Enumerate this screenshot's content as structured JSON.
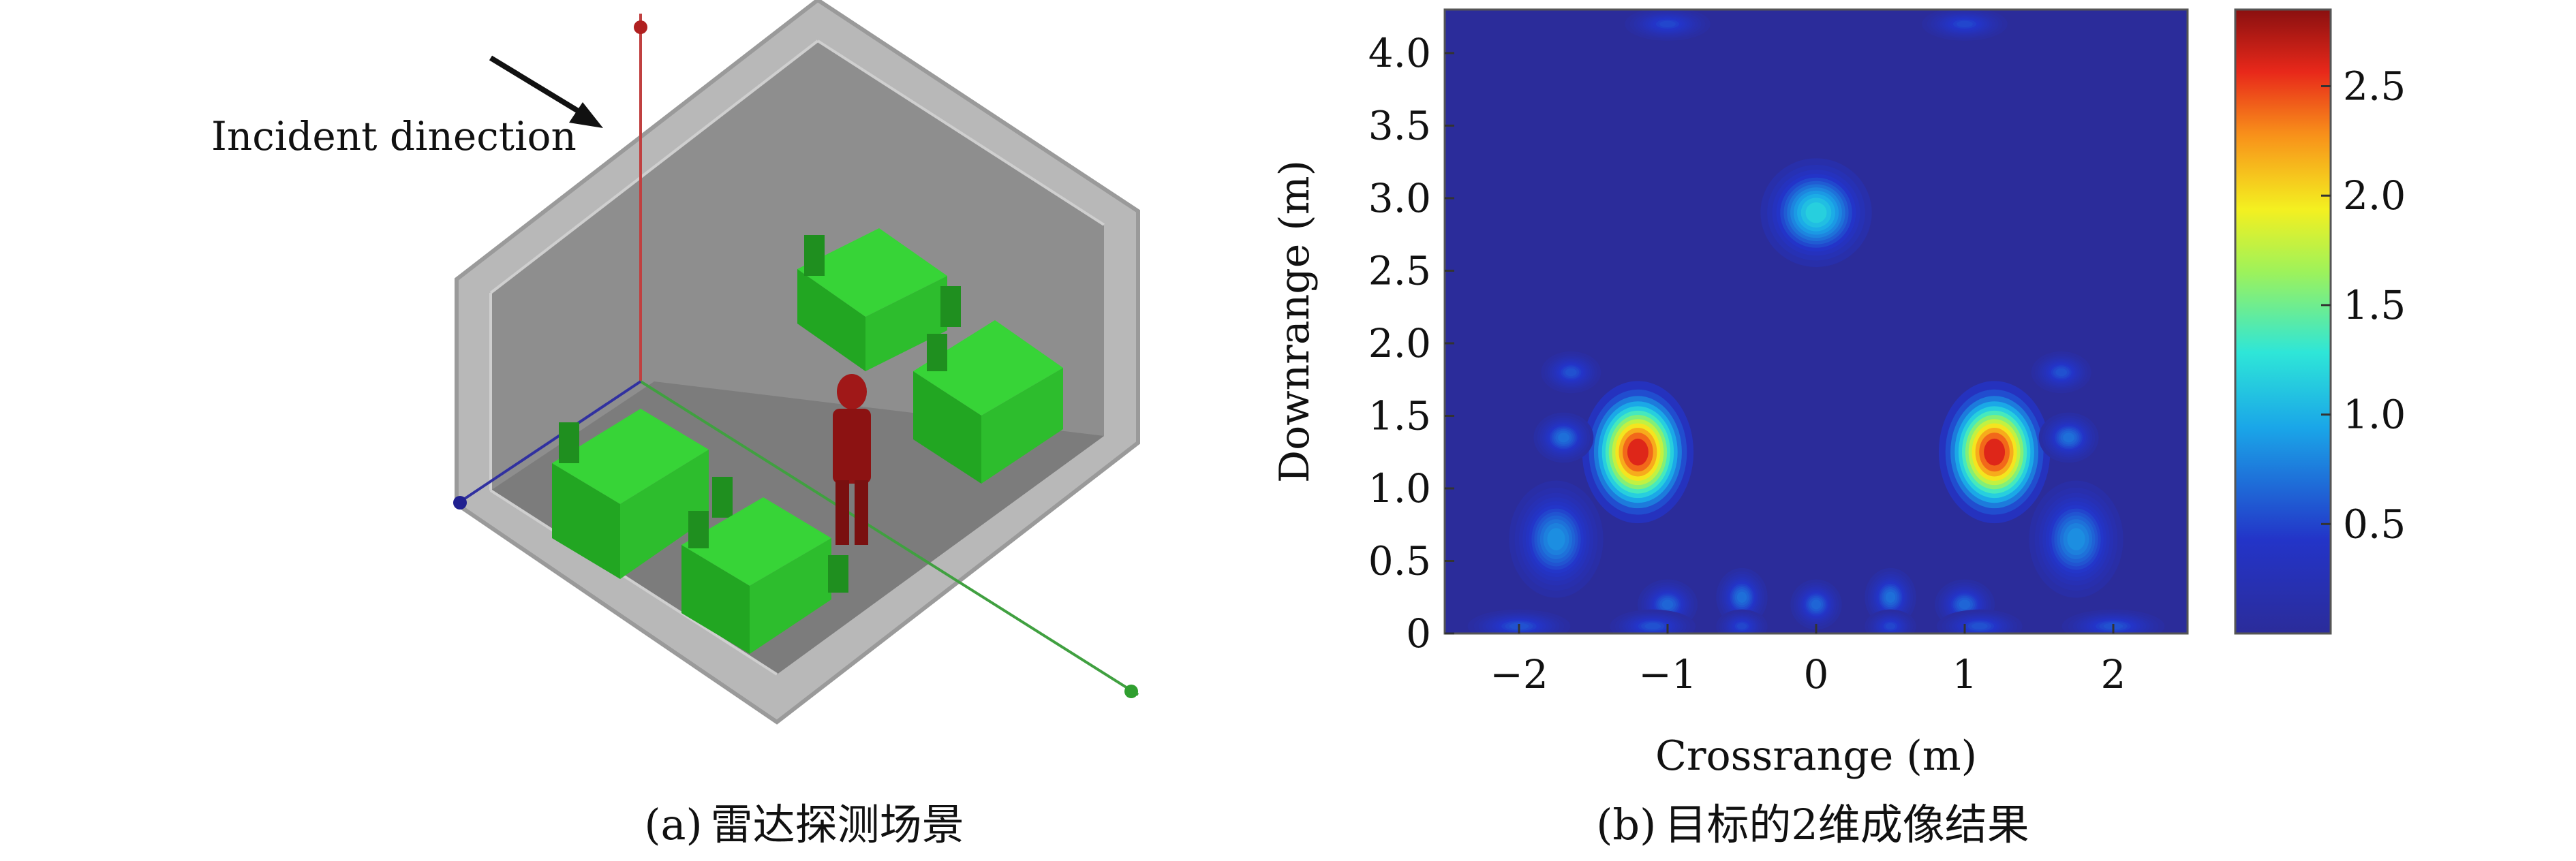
{
  "panel_a": {
    "annotation": "Incident dinection",
    "caption_label": "(a)",
    "caption_text": "雷达探测场景"
  },
  "panel_b": {
    "caption_label": "(b)",
    "caption_text": "目标的2维成像结果"
  },
  "colors": {
    "background_blue": "#2b2c9a",
    "desk_green": "#2fc42f",
    "human_red": "#a01818",
    "room_gray": "#8c8c8c"
  },
  "chart_data": {
    "type": "heatmap",
    "xlabel": "Crossrange (m)",
    "ylabel": "Downrange (m)",
    "xlim": [
      -2.5,
      2.5
    ],
    "ylim": [
      0,
      4.3
    ],
    "x_ticks": [
      -2,
      -1,
      0,
      1,
      2
    ],
    "x_tick_labels": [
      "−2",
      "−1",
      "0",
      "1",
      "2"
    ],
    "y_ticks": [
      0,
      0.5,
      1.0,
      1.5,
      2.0,
      2.5,
      3.0,
      3.5,
      4.0
    ],
    "y_tick_labels": [
      "0",
      "0.5",
      "1.0",
      "1.5",
      "2.0",
      "2.5",
      "3.0",
      "3.5",
      "4.0"
    ],
    "colorbar": {
      "range": [
        0,
        2.85
      ],
      "ticks": [
        0.5,
        1.0,
        1.5,
        2.0,
        2.5
      ],
      "tick_labels": [
        "0.5",
        "1.0",
        "1.5",
        "2.0",
        "2.5"
      ]
    },
    "peaks": [
      {
        "x": -1.2,
        "y": 1.25,
        "value": 2.8,
        "sx": 0.13,
        "sy": 0.17
      },
      {
        "x": 1.2,
        "y": 1.25,
        "value": 2.8,
        "sx": 0.13,
        "sy": 0.17
      },
      {
        "x": 0.0,
        "y": 2.9,
        "value": 1.25,
        "sx": 0.13,
        "sy": 0.13
      },
      {
        "x": -1.75,
        "y": 0.65,
        "value": 0.9,
        "sx": 0.11,
        "sy": 0.14
      },
      {
        "x": 1.75,
        "y": 0.65,
        "value": 0.9,
        "sx": 0.11,
        "sy": 0.14
      },
      {
        "x": -1.7,
        "y": 1.35,
        "value": 0.75,
        "sx": 0.07,
        "sy": 0.06
      },
      {
        "x": 1.7,
        "y": 1.35,
        "value": 0.75,
        "sx": 0.07,
        "sy": 0.06
      },
      {
        "x": -1.65,
        "y": 1.8,
        "value": 0.6,
        "sx": 0.07,
        "sy": 0.05
      },
      {
        "x": 1.65,
        "y": 1.8,
        "value": 0.6,
        "sx": 0.07,
        "sy": 0.05
      },
      {
        "x": -1.0,
        "y": 0.2,
        "value": 0.7,
        "sx": 0.07,
        "sy": 0.06
      },
      {
        "x": -0.5,
        "y": 0.25,
        "value": 0.75,
        "sx": 0.06,
        "sy": 0.07
      },
      {
        "x": 0.0,
        "y": 0.2,
        "value": 0.7,
        "sx": 0.06,
        "sy": 0.06
      },
      {
        "x": 0.5,
        "y": 0.25,
        "value": 0.75,
        "sx": 0.06,
        "sy": 0.07
      },
      {
        "x": 1.0,
        "y": 0.2,
        "value": 0.7,
        "sx": 0.07,
        "sy": 0.06
      },
      {
        "x": -1.1,
        "y": 0.05,
        "value": 0.6,
        "sx": 0.1,
        "sy": 0.04
      },
      {
        "x": 1.1,
        "y": 0.05,
        "value": 0.6,
        "sx": 0.1,
        "sy": 0.04
      },
      {
        "x": -2.0,
        "y": 0.05,
        "value": 0.6,
        "sx": 0.12,
        "sy": 0.04
      },
      {
        "x": 2.0,
        "y": 0.05,
        "value": 0.6,
        "sx": 0.12,
        "sy": 0.04
      },
      {
        "x": -0.5,
        "y": 0.05,
        "value": 0.55,
        "sx": 0.06,
        "sy": 0.04
      },
      {
        "x": 0.5,
        "y": 0.05,
        "value": 0.55,
        "sx": 0.06,
        "sy": 0.04
      },
      {
        "x": -1.0,
        "y": 4.2,
        "value": 0.55,
        "sx": 0.1,
        "sy": 0.04
      },
      {
        "x": 1.0,
        "y": 4.2,
        "value": 0.55,
        "sx": 0.1,
        "sy": 0.04
      }
    ]
  }
}
